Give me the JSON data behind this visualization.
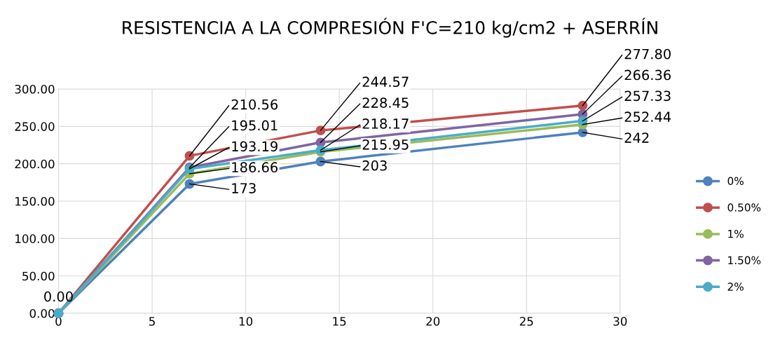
{
  "chart_data": {
    "type": "line",
    "title": "RESISTENCIA A LA COMPRESIÓN F'C=210 kg/cm2 + ASERRÍN",
    "x": [
      0,
      7,
      14,
      28
    ],
    "series": [
      {
        "name": "0%",
        "color": "#4f81bd",
        "values": [
          0,
          173,
          203,
          242
        ],
        "value_labels": [
          "0.00",
          "173",
          "203",
          "242"
        ]
      },
      {
        "name": "0.50%",
        "color": "#c0504d",
        "values": [
          0,
          210.56,
          244.57,
          277.8
        ],
        "value_labels": [
          null,
          "210.56",
          "244.57",
          "277.80"
        ]
      },
      {
        "name": "1%",
        "color": "#9bbb59",
        "values": [
          0,
          186.66,
          215.95,
          252.44
        ],
        "value_labels": [
          null,
          "186.66",
          "215.95",
          "252.44"
        ]
      },
      {
        "name": "1.50%",
        "color": "#8064a2",
        "values": [
          0,
          195.01,
          228.45,
          266.36
        ],
        "value_labels": [
          null,
          "195.01",
          "228.45",
          "266.36"
        ]
      },
      {
        "name": "2%",
        "color": "#4bacc6",
        "values": [
          0,
          193.19,
          218.17,
          257.33
        ],
        "value_labels": [
          null,
          "193.19",
          "218.17",
          "257.33"
        ]
      }
    ],
    "xlim": [
      0,
      30
    ],
    "xticks": [
      0,
      5,
      10,
      15,
      20,
      25,
      30
    ],
    "ylim": [
      0,
      300
    ],
    "yticks": [
      {
        "value": 0,
        "label": "0.00"
      },
      {
        "value": 50,
        "label": "50.00"
      },
      {
        "value": 100,
        "label": "100.00"
      },
      {
        "value": 150,
        "label": "150.00"
      },
      {
        "value": 200,
        "label": "200.00"
      },
      {
        "value": 250,
        "label": "250.00"
      },
      {
        "value": 300,
        "label": "300.00"
      }
    ],
    "grid": true,
    "legend": "right",
    "marker": "circle",
    "line_style": "solid"
  }
}
